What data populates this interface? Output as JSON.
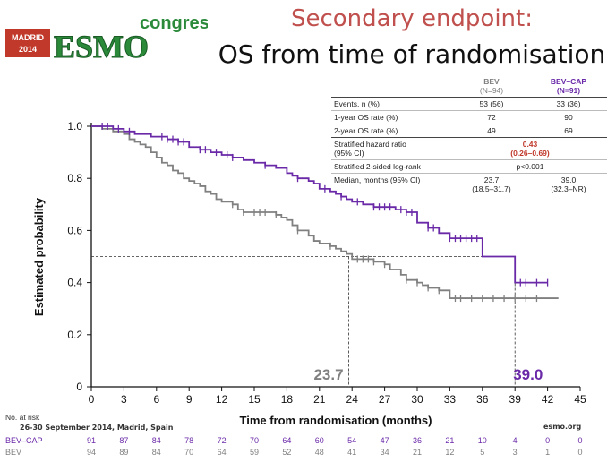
{
  "header": {
    "logo": {
      "city": "MADRID",
      "year": "2014",
      "brand": "ESMO",
      "suffix": "congress"
    },
    "title": "Secondary endpoint:",
    "subtitle": "OS from time of randomisation"
  },
  "stats_table": {
    "col_bev": "BEV",
    "col_bev_n": "(N=94)",
    "col_cap": "BEV–CAP",
    "col_cap_n": "(N=91)",
    "rows": [
      {
        "label": "Events, n (%)",
        "bev": "53 (56)",
        "cap": "33 (36)"
      },
      {
        "label": "1-year OS rate (%)",
        "bev": "72",
        "cap": "90"
      },
      {
        "label": "2-year OS rate (%)",
        "bev": "49",
        "cap": "69"
      }
    ],
    "hr_label_1": "Stratified hazard ratio",
    "hr_label_2": "(95% CI)",
    "hr_value": "0.43",
    "hr_ci": "(0.26–0.69)",
    "logrank_label": "Stratified 2-sided log-rank",
    "logrank_value": "p<0.001",
    "median_label": "Median, months (95% CI)",
    "median_bev": "23.7",
    "median_bev_ci": "(18.5–31.7)",
    "median_cap": "39.0",
    "median_cap_ci": "(32.3–NR)"
  },
  "chart_data": {
    "type": "line",
    "xlabel": "Time from randomisation (months)",
    "ylabel": "Estimated probability",
    "xlim": [
      0,
      45
    ],
    "ylim": [
      0,
      1.0
    ],
    "xticks": [
      0,
      3,
      6,
      9,
      12,
      15,
      18,
      21,
      24,
      27,
      30,
      33,
      36,
      39,
      42,
      45
    ],
    "yticks": [
      0,
      0.2,
      0.4,
      0.6,
      0.8,
      1.0
    ],
    "ytick_labels": [
      "0",
      "0.2",
      "0.4",
      "0.6",
      "0.8",
      "1.0"
    ],
    "median_line": 0.5,
    "annotations": [
      {
        "text": "23.7",
        "x": 23.7,
        "color": "#808080"
      },
      {
        "text": "39.0",
        "x": 39.0,
        "color": "#6a2aa8"
      }
    ],
    "series": [
      {
        "name": "BEV–CAP",
        "color": "#6a2aa8",
        "steps": [
          [
            0,
            1.0
          ],
          [
            2,
            0.99
          ],
          [
            3,
            0.98
          ],
          [
            4,
            0.97
          ],
          [
            5.5,
            0.96
          ],
          [
            7,
            0.95
          ],
          [
            8,
            0.94
          ],
          [
            9,
            0.92
          ],
          [
            10,
            0.91
          ],
          [
            11,
            0.9
          ],
          [
            12,
            0.89
          ],
          [
            13,
            0.88
          ],
          [
            14,
            0.87
          ],
          [
            15,
            0.86
          ],
          [
            16,
            0.85
          ],
          [
            17,
            0.84
          ],
          [
            18,
            0.82
          ],
          [
            18.5,
            0.81
          ],
          [
            19,
            0.8
          ],
          [
            20,
            0.79
          ],
          [
            20.5,
            0.78
          ],
          [
            21,
            0.76
          ],
          [
            22,
            0.75
          ],
          [
            22.5,
            0.74
          ],
          [
            23,
            0.73
          ],
          [
            23.5,
            0.72
          ],
          [
            24,
            0.71
          ],
          [
            25,
            0.7
          ],
          [
            26,
            0.69
          ],
          [
            28,
            0.68
          ],
          [
            29,
            0.67
          ],
          [
            30,
            0.63
          ],
          [
            31,
            0.61
          ],
          [
            32,
            0.59
          ],
          [
            33,
            0.57
          ],
          [
            36,
            0.5
          ],
          [
            39,
            0.4
          ],
          [
            42,
            0.4
          ]
        ],
        "censor_x": [
          1,
          1.5,
          2.5,
          3.5,
          6.5,
          7,
          7.5,
          8,
          8.5,
          10,
          10.5,
          11.5,
          12.5,
          13,
          16,
          19,
          21.5,
          23,
          24.5,
          26,
          26.5,
          27,
          27.5,
          28.5,
          29,
          29.5,
          31,
          31.5,
          33,
          33.5,
          34,
          34.5,
          35,
          35.5,
          39.5,
          40,
          41,
          42
        ]
      },
      {
        "name": "BEV",
        "color": "#808080",
        "steps": [
          [
            0,
            1.0
          ],
          [
            1,
            0.99
          ],
          [
            2,
            0.98
          ],
          [
            3,
            0.97
          ],
          [
            3.5,
            0.95
          ],
          [
            4,
            0.94
          ],
          [
            4.5,
            0.93
          ],
          [
            5,
            0.92
          ],
          [
            5.5,
            0.9
          ],
          [
            6,
            0.88
          ],
          [
            6.5,
            0.86
          ],
          [
            7,
            0.85
          ],
          [
            7.5,
            0.83
          ],
          [
            8,
            0.82
          ],
          [
            8.5,
            0.8
          ],
          [
            9,
            0.79
          ],
          [
            9.5,
            0.78
          ],
          [
            10,
            0.77
          ],
          [
            10.5,
            0.75
          ],
          [
            11,
            0.74
          ],
          [
            11.5,
            0.72
          ],
          [
            12,
            0.71
          ],
          [
            13,
            0.7
          ],
          [
            13.5,
            0.68
          ],
          [
            14,
            0.67
          ],
          [
            17,
            0.66
          ],
          [
            17.5,
            0.65
          ],
          [
            18,
            0.64
          ],
          [
            18.5,
            0.62
          ],
          [
            19,
            0.6
          ],
          [
            20,
            0.58
          ],
          [
            20.5,
            0.56
          ],
          [
            21,
            0.55
          ],
          [
            22,
            0.54
          ],
          [
            22.5,
            0.53
          ],
          [
            23,
            0.52
          ],
          [
            23.5,
            0.51
          ],
          [
            24,
            0.49
          ],
          [
            26,
            0.48
          ],
          [
            27,
            0.47
          ],
          [
            27.5,
            0.45
          ],
          [
            28.5,
            0.43
          ],
          [
            29,
            0.41
          ],
          [
            30,
            0.4
          ],
          [
            30.5,
            0.39
          ],
          [
            31,
            0.38
          ],
          [
            32,
            0.37
          ],
          [
            33,
            0.34
          ],
          [
            43,
            0.34
          ]
        ],
        "censor_x": [
          13,
          14,
          15,
          15.5,
          16,
          17,
          19,
          22,
          24.5,
          25,
          25.5,
          26,
          27,
          29,
          30,
          31,
          32,
          33.5,
          34,
          35,
          36,
          37,
          38,
          39,
          40,
          41
        ]
      }
    ]
  },
  "risk_table": {
    "title": "No. at risk",
    "times": [
      0,
      3,
      6,
      9,
      12,
      15,
      18,
      21,
      24,
      27,
      30,
      33,
      36,
      39,
      42,
      45
    ],
    "rows": [
      {
        "name": "BEV–CAP",
        "values": [
          "91",
          "87",
          "84",
          "78",
          "72",
          "70",
          "64",
          "60",
          "54",
          "47",
          "36",
          "21",
          "10",
          "4",
          "0",
          "0"
        ]
      },
      {
        "name": "BEV",
        "values": [
          "94",
          "89",
          "84",
          "70",
          "64",
          "59",
          "52",
          "48",
          "41",
          "34",
          "21",
          "12",
          "5",
          "3",
          "1",
          "0"
        ]
      }
    ]
  },
  "footer": {
    "date": "26-30 September 2014, Madrid, Spain",
    "site": "esmo.org"
  }
}
